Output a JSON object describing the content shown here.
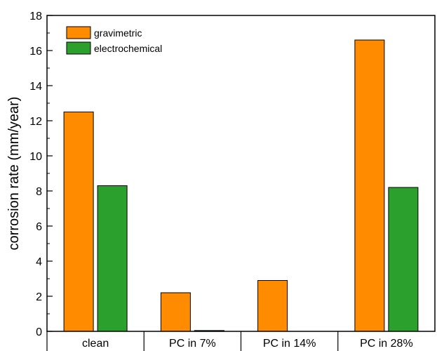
{
  "chart_data": {
    "type": "bar",
    "title": "",
    "xlabel": "",
    "ylabel": "corrosion rate (mm/year)",
    "categories": [
      "clean",
      "PC in 7%",
      "PC in 14%",
      "PC in 28%"
    ],
    "series": [
      {
        "name": "gravimetric",
        "color": "#ff8c00",
        "values": [
          12.5,
          2.2,
          2.9,
          16.6
        ]
      },
      {
        "name": "electrochemical",
        "color": "#2ca02c",
        "values": [
          8.3,
          0.05,
          0,
          8.2
        ]
      }
    ],
    "ylim": [
      0,
      18
    ],
    "yticks": [
      0,
      2,
      4,
      6,
      8,
      10,
      12,
      14,
      16,
      18
    ],
    "grid": false,
    "legend_position": "top-left"
  }
}
